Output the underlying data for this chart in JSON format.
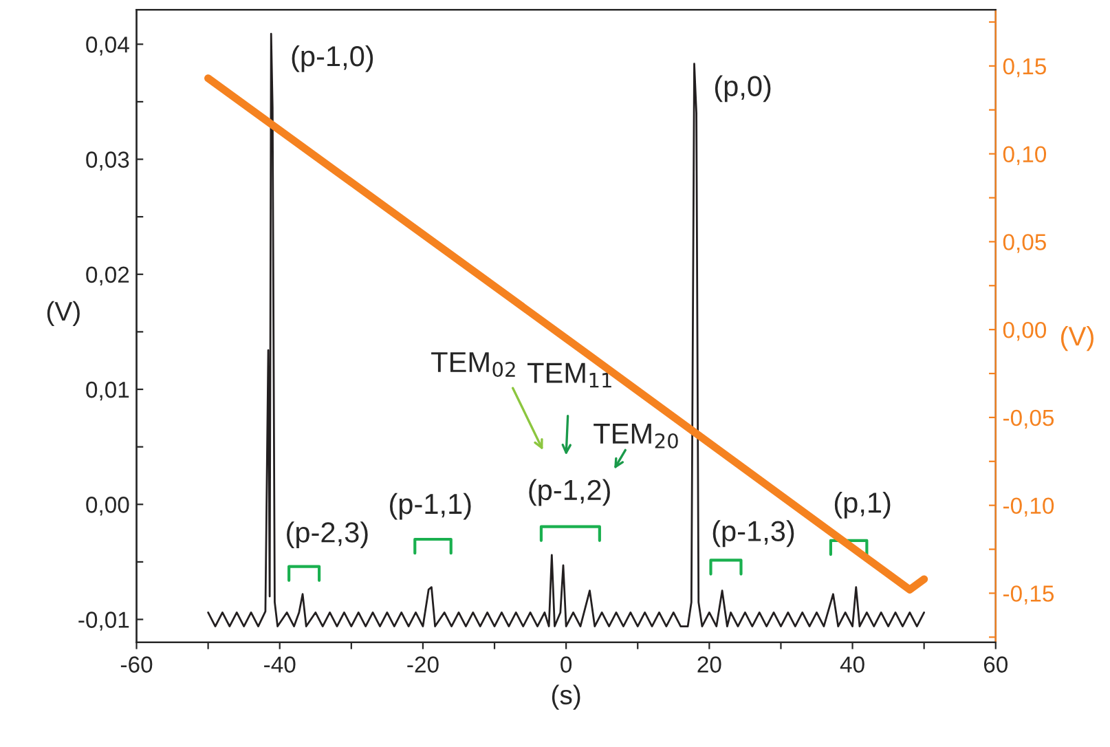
{
  "chart_data": {
    "type": "line",
    "xlabel": "(s)",
    "ylabel": "(V)",
    "y2label": "(V)",
    "xlim": [
      -60,
      60
    ],
    "xticks": [
      -60,
      {
        "value": -50,
        "label": null
      },
      -40,
      {
        "value": -30,
        "label": null
      },
      -20,
      {
        "value": -10,
        "label": null
      },
      0,
      {
        "value": 10,
        "label": null
      },
      20,
      {
        "value": 30,
        "label": null
      },
      40,
      {
        "value": 50,
        "label": null
      },
      60
    ],
    "ylim": [
      -0.012,
      0.043
    ],
    "yticks": [
      {
        "value": -0.01,
        "label": "-0,01"
      },
      {
        "value": -0.005,
        "label": null
      },
      {
        "value": 0.0,
        "label": "0,00"
      },
      {
        "value": 0.005,
        "label": null
      },
      {
        "value": 0.01,
        "label": "0,01"
      },
      {
        "value": 0.015,
        "label": null
      },
      {
        "value": 0.02,
        "label": "0,02"
      },
      {
        "value": 0.025,
        "label": null
      },
      {
        "value": 0.03,
        "label": "0,03"
      },
      {
        "value": 0.035,
        "label": null
      },
      {
        "value": 0.04,
        "label": "0,04"
      }
    ],
    "y2lim": [
      -0.178,
      0.182
    ],
    "y2ticks": [
      {
        "value": -0.175,
        "label": null
      },
      {
        "value": -0.15,
        "label": "-0,15"
      },
      {
        "value": -0.125,
        "label": null
      },
      {
        "value": -0.1,
        "label": "-0,10"
      },
      {
        "value": -0.075,
        "label": null
      },
      {
        "value": -0.05,
        "label": "-0,05"
      },
      {
        "value": -0.025,
        "label": null
      },
      {
        "value": 0.0,
        "label": "0,00"
      },
      {
        "value": 0.025,
        "label": null
      },
      {
        "value": 0.05,
        "label": "0,05"
      },
      {
        "value": 0.075,
        "label": null
      },
      {
        "value": 0.1,
        "label": "0,10"
      },
      {
        "value": 0.125,
        "label": null
      },
      {
        "value": 0.15,
        "label": "0,15"
      },
      {
        "value": 0.175,
        "label": null
      }
    ],
    "grid": false,
    "series": [
      {
        "color": "#231f20",
        "x": [
          -50,
          -49,
          -48,
          -47,
          -46,
          -45,
          -44,
          -43,
          -42,
          -41.6,
          -41.4,
          -41.2,
          -41.0,
          -40.7,
          -40.3,
          -39,
          -38,
          -37.3,
          -36.8,
          -36.3,
          -35,
          -34,
          -33,
          -32,
          -31,
          -30,
          -29,
          -28,
          -27,
          -26,
          -25,
          -24,
          -23,
          -22,
          -21,
          -20,
          -19.2,
          -18.8,
          -18.3,
          -17,
          -16,
          -15,
          -14,
          -13,
          -12,
          -11,
          -10,
          -9,
          -8,
          -7,
          -6,
          -5,
          -4,
          -3,
          -2.4,
          -2.0,
          -1.6,
          -0.8,
          -0.4,
          0.0,
          1,
          2,
          3.3,
          4,
          5,
          6,
          7,
          8,
          9,
          10,
          11,
          12,
          13,
          14,
          15,
          16,
          17,
          17.5,
          17.9,
          18.2,
          18.5,
          19,
          20,
          21,
          21.8,
          22.5,
          23,
          24,
          25,
          26,
          27,
          28,
          29,
          30,
          31,
          32,
          33,
          34,
          35,
          36,
          37.3,
          38,
          39,
          40,
          40.5,
          41,
          42,
          43,
          44,
          45,
          46,
          47,
          48,
          49,
          50
        ],
        "values": [
          -0.0094,
          -0.0106,
          -0.0094,
          -0.0106,
          -0.0094,
          -0.0106,
          -0.0094,
          -0.0106,
          -0.0093,
          0.0134,
          -0.008,
          0.0409,
          0.0345,
          -0.0085,
          -0.0106,
          -0.0094,
          -0.0106,
          -0.0094,
          -0.0078,
          -0.0106,
          -0.0094,
          -0.0106,
          -0.0094,
          -0.0106,
          -0.0094,
          -0.0106,
          -0.0094,
          -0.0106,
          -0.0094,
          -0.0106,
          -0.0094,
          -0.0106,
          -0.0094,
          -0.0106,
          -0.0094,
          -0.0106,
          -0.0074,
          -0.0072,
          -0.0106,
          -0.0094,
          -0.0106,
          -0.0094,
          -0.0106,
          -0.0094,
          -0.0106,
          -0.0094,
          -0.0106,
          -0.0094,
          -0.0106,
          -0.0094,
          -0.0106,
          -0.0094,
          -0.0106,
          -0.0094,
          -0.0106,
          -0.0044,
          -0.0106,
          -0.0094,
          -0.0053,
          -0.0106,
          -0.0094,
          -0.0106,
          -0.0075,
          -0.0106,
          -0.0094,
          -0.0106,
          -0.0094,
          -0.0106,
          -0.0094,
          -0.0106,
          -0.0094,
          -0.0106,
          -0.0094,
          -0.0106,
          -0.0094,
          -0.0106,
          -0.0106,
          -0.0085,
          0.0383,
          0.034,
          -0.0085,
          -0.0106,
          -0.0094,
          -0.0106,
          -0.0075,
          -0.0106,
          -0.0094,
          -0.0106,
          -0.0094,
          -0.0106,
          -0.0094,
          -0.0106,
          -0.0094,
          -0.0106,
          -0.0094,
          -0.0106,
          -0.0094,
          -0.0106,
          -0.0094,
          -0.0106,
          -0.0078,
          -0.0106,
          -0.0094,
          -0.0106,
          -0.0072,
          -0.0106,
          -0.0094,
          -0.0106,
          -0.0094,
          -0.0106,
          -0.0094,
          -0.0106,
          -0.0094,
          -0.0106,
          -0.0094
        ]
      },
      {
        "color": "#f58220",
        "axis": "y2",
        "x": [
          -50,
          0,
          48,
          50
        ],
        "values": [
          0.143,
          -0.005,
          -0.148,
          -0.142
        ]
      }
    ],
    "annotations": [
      {
        "text": "(p-1,0)",
        "x": -41.2,
        "y": 0.0409
      },
      {
        "text": "(p,0)",
        "x": 17.9,
        "y": 0.0383
      },
      "(p-2,3)",
      "(p-1,1)",
      "(p-1,2)",
      "(p-1,3)",
      "(p,1)",
      "TEM$_{02}$",
      "TEM$_{11}$",
      "TEM$_{20}$"
    ]
  }
}
